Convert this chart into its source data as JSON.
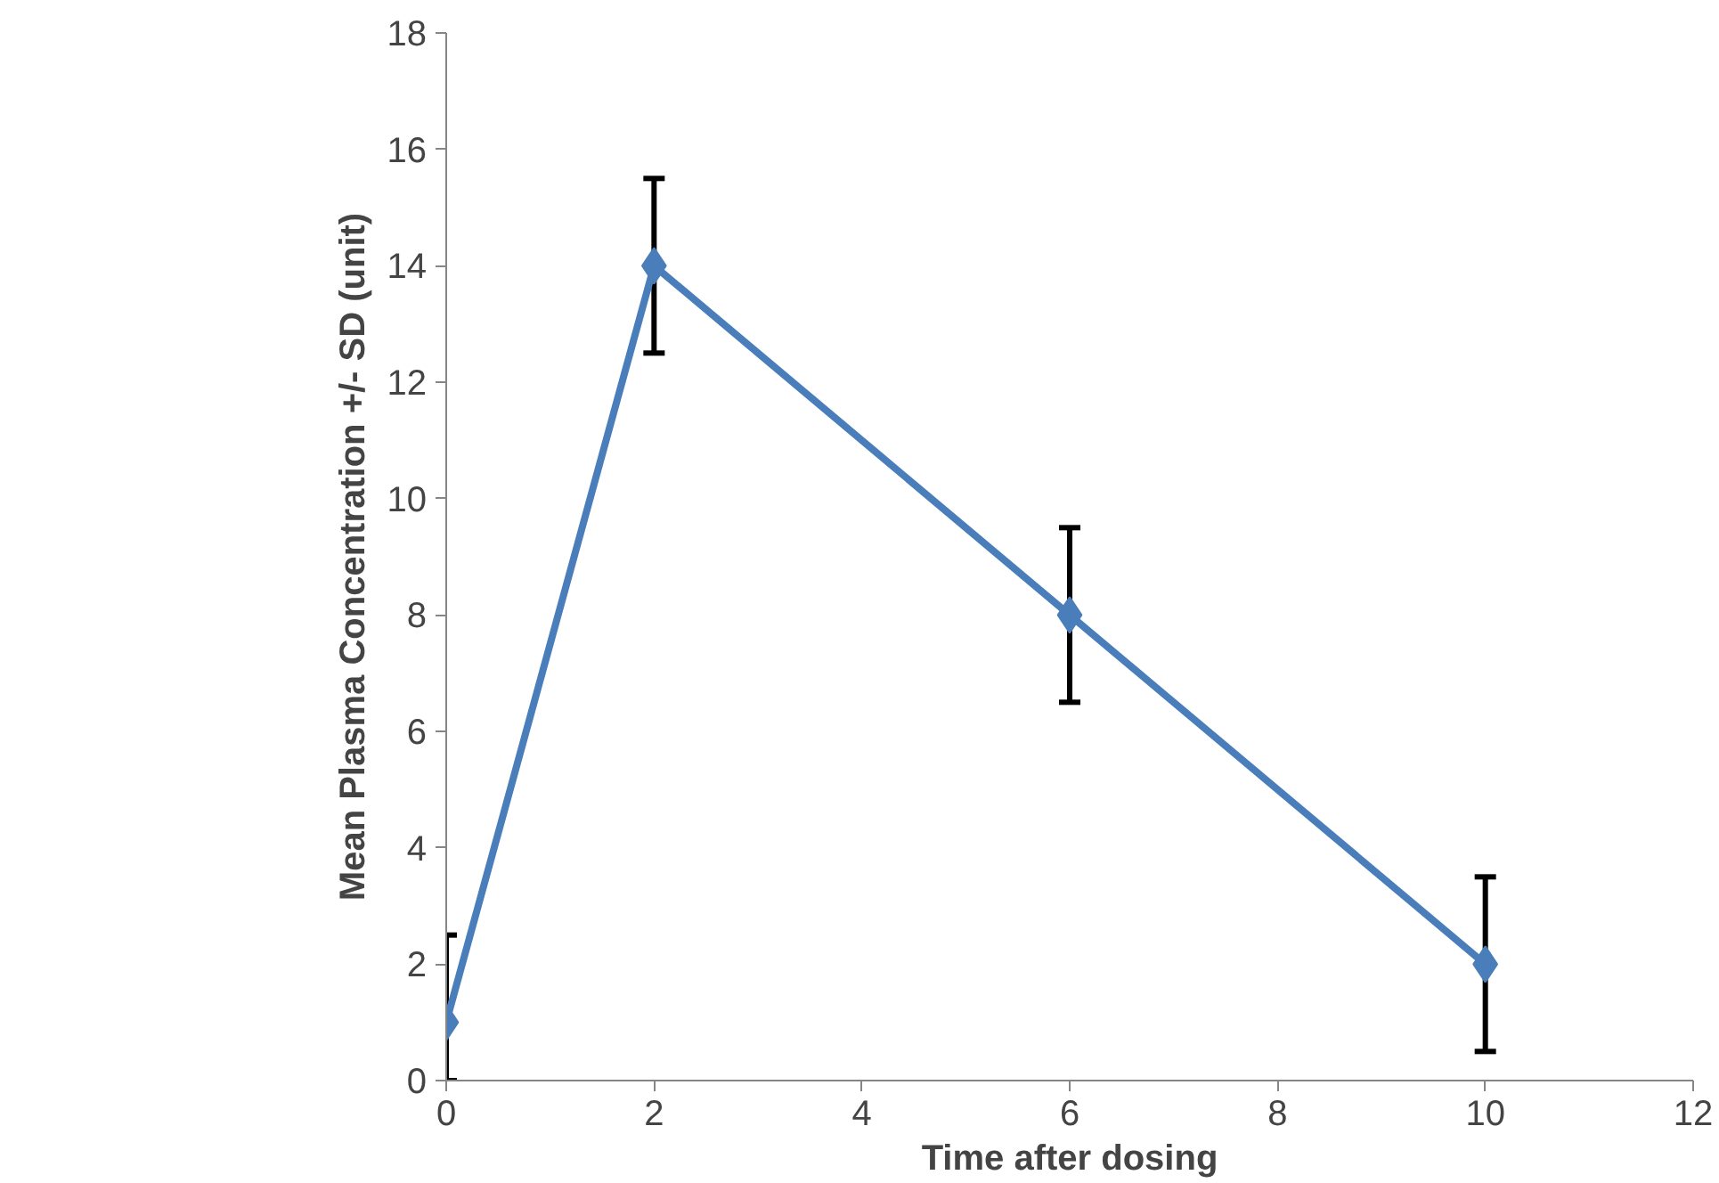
{
  "chart_data": {
    "type": "line",
    "xlabel": "Time after dosing",
    "ylabel": "Mean Plasma Concentration +/- SD (unit)",
    "x": [
      0,
      2,
      6,
      10
    ],
    "series": [
      {
        "color": "#4a7ebb",
        "values": [
          1,
          14,
          8,
          2
        ],
        "errors": [
          [
            0,
            2.5
          ],
          [
            12.5,
            15.5
          ],
          [
            6.5,
            9.5
          ],
          [
            0.5,
            3.5
          ]
        ]
      }
    ],
    "xlim": [
      0,
      12
    ],
    "ylim": [
      0,
      18
    ],
    "xticks": [
      0,
      2,
      4,
      6,
      8,
      10,
      12
    ],
    "yticks": [
      0,
      2,
      4,
      6,
      8,
      10,
      12,
      14,
      16,
      18
    ],
    "grid": false,
    "marker": "diamond",
    "line_style": "solid"
  }
}
